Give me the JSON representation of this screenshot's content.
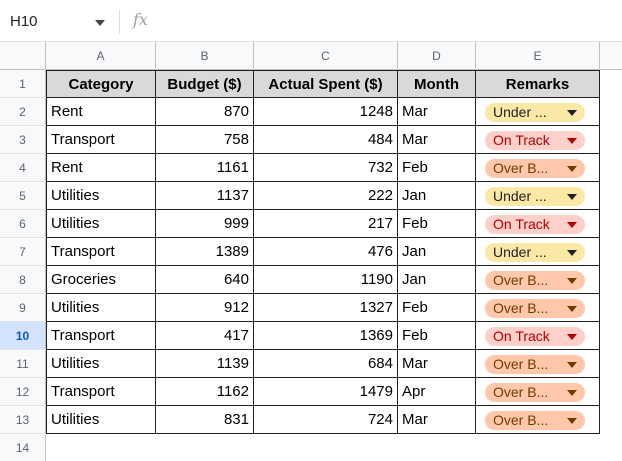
{
  "formula_bar": {
    "cell_ref": "H10",
    "fx_label": "fx",
    "formula": ""
  },
  "columns": [
    "A",
    "B",
    "C",
    "D",
    "E"
  ],
  "rows": [
    "1",
    "2",
    "3",
    "4",
    "5",
    "6",
    "7",
    "8",
    "9",
    "10",
    "11",
    "12",
    "13",
    "14"
  ],
  "selected_row": "10",
  "table": {
    "headers": [
      "Category",
      "Budget ($)",
      "Actual Spent ($)",
      "Month",
      "Remarks"
    ],
    "records": [
      {
        "category": "Rent",
        "budget": "870",
        "actual": "1248",
        "month": "Mar",
        "remarks": "Under ...",
        "status": "under"
      },
      {
        "category": "Transport",
        "budget": "758",
        "actual": "484",
        "month": "Mar",
        "remarks": "On Track",
        "status": "ontrack"
      },
      {
        "category": "Rent",
        "budget": "1161",
        "actual": "732",
        "month": "Feb",
        "remarks": "Over B...",
        "status": "over"
      },
      {
        "category": "Utilities",
        "budget": "1137",
        "actual": "222",
        "month": "Jan",
        "remarks": "Under ...",
        "status": "under"
      },
      {
        "category": "Utilities",
        "budget": "999",
        "actual": "217",
        "month": "Feb",
        "remarks": "On Track",
        "status": "ontrack"
      },
      {
        "category": "Transport",
        "budget": "1389",
        "actual": "476",
        "month": "Jan",
        "remarks": "Under ...",
        "status": "under"
      },
      {
        "category": "Groceries",
        "budget": "640",
        "actual": "1190",
        "month": "Jan",
        "remarks": "Over B...",
        "status": "over"
      },
      {
        "category": "Utilities",
        "budget": "912",
        "actual": "1327",
        "month": "Feb",
        "remarks": "Over B...",
        "status": "over"
      },
      {
        "category": "Transport",
        "budget": "417",
        "actual": "1369",
        "month": "Feb",
        "remarks": "On Track",
        "status": "ontrack"
      },
      {
        "category": "Utilities",
        "budget": "1139",
        "actual": "684",
        "month": "Mar",
        "remarks": "Over B...",
        "status": "over"
      },
      {
        "category": "Transport",
        "budget": "1162",
        "actual": "1479",
        "month": "Apr",
        "remarks": "Over B...",
        "status": "over"
      },
      {
        "category": "Utilities",
        "budget": "831",
        "actual": "724",
        "month": "Mar",
        "remarks": "Over B...",
        "status": "over"
      }
    ]
  },
  "colors": {
    "under_chip": "#fce8a6",
    "ontrack_chip": "#ffcfc9",
    "over_chip": "#ffc8aa",
    "header_fill": "#d9d9d9",
    "selected_row_header": "#d3e3fd"
  },
  "icons": {
    "name_box_dropdown": "chevron-down-icon",
    "formula": "fx-icon",
    "chip_dropdown": "caret-down-icon"
  }
}
